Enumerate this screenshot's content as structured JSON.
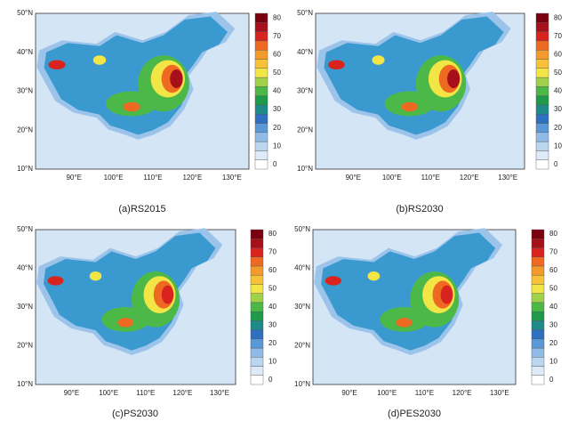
{
  "panels": [
    {
      "caption": "(a)RS2015",
      "lat_labels": [
        "50°N",
        "40°N",
        "30°N",
        "20°N",
        "10°N"
      ],
      "lon_labels": [
        "90°E",
        "100°E",
        "110°E",
        "120°E",
        "130°E"
      ],
      "colorbar_labels": [
        "0",
        "10",
        "20",
        "30",
        "40",
        "50",
        "60",
        "70",
        "80"
      ]
    },
    {
      "caption": "(b)RS2030",
      "lat_labels": [
        "50°N",
        "40°N",
        "30°N",
        "20°N",
        "10°N"
      ],
      "lon_labels": [
        "90°E",
        "100°E",
        "110°E",
        "120°E",
        "130°E"
      ],
      "colorbar_labels": [
        "0",
        "10",
        "20",
        "30",
        "40",
        "50",
        "60",
        "70",
        "80"
      ]
    },
    {
      "caption": "(c)PS2030",
      "lat_labels": [
        "50°N",
        "40°N",
        "30°N",
        "20°N",
        "10°N"
      ],
      "lon_labels": [
        "90°E",
        "100°E",
        "110°E",
        "120°E",
        "130°E"
      ],
      "colorbar_labels": [
        "0",
        "10",
        "20",
        "30",
        "40",
        "50",
        "60",
        "70",
        "80"
      ]
    },
    {
      "caption": "(d)PES2030",
      "lat_labels": [
        "50°N",
        "40°N",
        "30°N",
        "20°N",
        "10°N"
      ],
      "lon_labels": [
        "90°E",
        "100°E",
        "110°E",
        "120°E",
        "130°E"
      ],
      "colorbar_labels": [
        "0",
        "10",
        "20",
        "30",
        "40",
        "50",
        "60",
        "70",
        "80"
      ]
    }
  ],
  "colorbar_colors": [
    "#ffffff",
    "#deeaf7",
    "#bcd6f0",
    "#8fbbe6",
    "#5a98d6",
    "#2f6fbf",
    "#1f8a8a",
    "#1f9a4a",
    "#4cb848",
    "#9fd14a",
    "#f2e646",
    "#f7c23a",
    "#f39a2c",
    "#ee6a22",
    "#d9231f",
    "#a5101a",
    "#7a0010"
  ]
}
